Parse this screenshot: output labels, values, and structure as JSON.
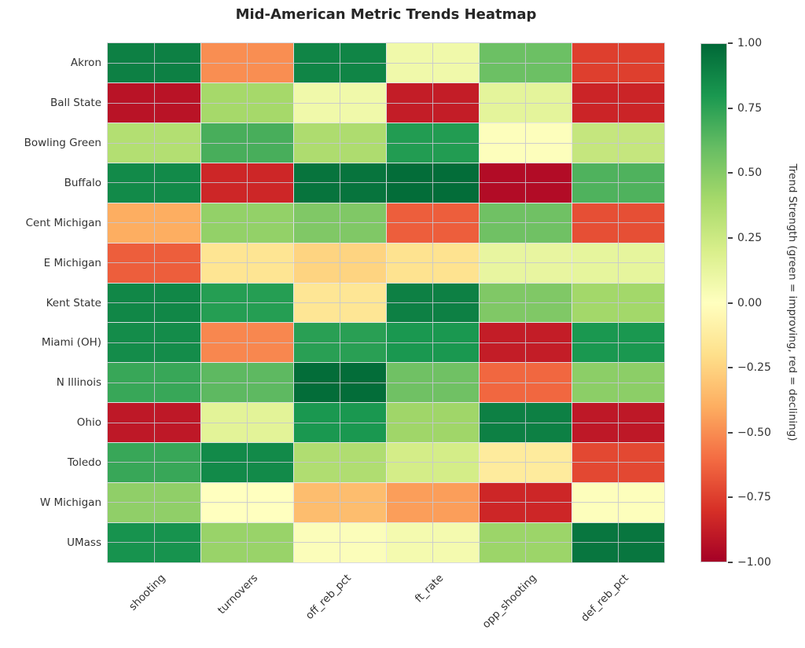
{
  "title": "Mid-American Metric Trends Heatmap",
  "chart_data": {
    "type": "heatmap",
    "colormap": "RdYlGn",
    "vmin": -1,
    "vmax": 1,
    "grid": true,
    "columns": [
      "shooting",
      "turnovers",
      "off_reb_pct",
      "ft_rate",
      "opp_shooting",
      "def_reb_pct"
    ],
    "rows": [
      "Akron",
      "Ball State",
      "Bowling Green",
      "Buffalo",
      "Cent Michigan",
      "E Michigan",
      "Kent State",
      "Miami (OH)",
      "N Illinois",
      "Ohio",
      "Toledo",
      "W Michigan",
      "UMass"
    ],
    "values": [
      [
        0.9,
        -0.5,
        0.88,
        0.08,
        0.58,
        -0.75
      ],
      [
        -0.92,
        0.4,
        0.08,
        -0.88,
        0.14,
        -0.85
      ],
      [
        0.35,
        0.68,
        0.37,
        0.78,
        0.01,
        0.28
      ],
      [
        0.86,
        -0.84,
        0.95,
        0.98,
        -0.95,
        0.66
      ],
      [
        -0.4,
        0.46,
        0.52,
        -0.65,
        0.57,
        -0.7
      ],
      [
        -0.65,
        -0.17,
        -0.25,
        -0.18,
        0.12,
        0.13
      ],
      [
        0.87,
        0.77,
        -0.16,
        0.9,
        0.52,
        0.41
      ],
      [
        0.85,
        -0.52,
        0.76,
        0.8,
        -0.88,
        0.8
      ],
      [
        0.72,
        0.62,
        0.98,
        0.57,
        -0.62,
        0.48
      ],
      [
        -0.9,
        0.15,
        0.8,
        0.42,
        0.9,
        -0.9
      ],
      [
        0.72,
        0.86,
        0.36,
        0.22,
        -0.13,
        -0.72
      ],
      [
        0.47,
        0.0,
        -0.34,
        -0.45,
        -0.84,
        0.01
      ],
      [
        0.82,
        0.44,
        0.02,
        0.06,
        0.43,
        0.94
      ]
    ],
    "colorbar": {
      "label": "Trend Strength (green = improving, red = declining)",
      "tick_values": [
        1.0,
        0.75,
        0.5,
        0.25,
        0.0,
        -0.25,
        -0.5,
        -0.75,
        -1.0
      ],
      "tick_labels": [
        "1.00",
        "0.75",
        "0.50",
        "0.25",
        "0.00",
        "−0.25",
        "−0.50",
        "−0.75",
        "−1.00"
      ]
    },
    "colormap_anchors": [
      "#a50026",
      "#d73027",
      "#f46d43",
      "#fdae61",
      "#fee08b",
      "#ffffbf",
      "#d9ef8b",
      "#a6d96a",
      "#66bd63",
      "#1a9850",
      "#006837"
    ]
  }
}
